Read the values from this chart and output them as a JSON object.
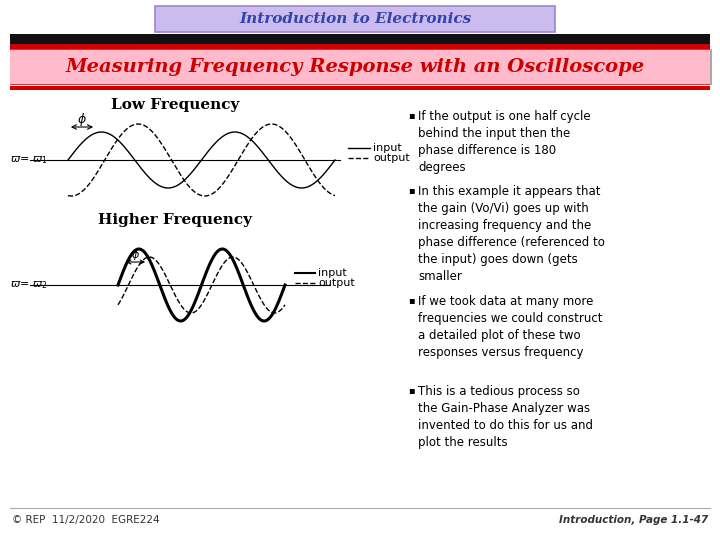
{
  "title_box": "Introduction to Electronics",
  "subtitle": "Measuring Frequency Response with an Oscilloscope",
  "title_bg": "#ccbbee",
  "title_border": "#9988cc",
  "subtitle_bg": "#ffbbcc",
  "bg_color": "#ffffff",
  "low_freq_title": "Low Frequency",
  "high_freq_title": "Higher Frequency",
  "bullet1": "If the output is one half cycle\nbehind the input then the\nphase difference is 180\ndegrees",
  "bullet2": "In this example it appears that\nthe gain (Vo/Vi) goes up with\nincreasing frequency and the\nphase difference (referenced to\nthe input) goes down (gets\nsmaller",
  "bullet3": "If we took data at many more\nfrequencies we could construct\na detailed plot of these two\nresponses versus frequency",
  "bullet4": "This is a tedious process so\nthe Gain-Phase Analyzer was\ninvented to do this for us and\nplot the results",
  "footer_left": "© REP  11/2/2020  EGRE224",
  "footer_right": "Introduction, Page 1.1-47",
  "low_freq_phase_shift": 0.55,
  "high_freq_phase_shift": 0.25
}
